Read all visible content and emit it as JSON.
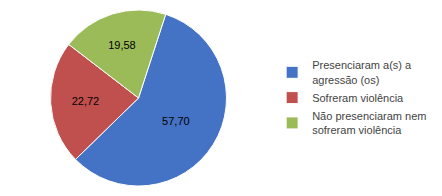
{
  "chart_data": {
    "type": "pie",
    "categories": [
      "Presenciaram a(s) a\nagressão (os)",
      "Sofreram violência",
      "Não presenciaram nem\nsofreram violência"
    ],
    "values": [
      57.7,
      22.72,
      19.58
    ],
    "value_labels": [
      "57,70",
      "22,72",
      "19,58"
    ],
    "colors": [
      "#4472C4",
      "#C0504D",
      "#9BBB59"
    ],
    "data_labels": true,
    "legend": "right"
  }
}
